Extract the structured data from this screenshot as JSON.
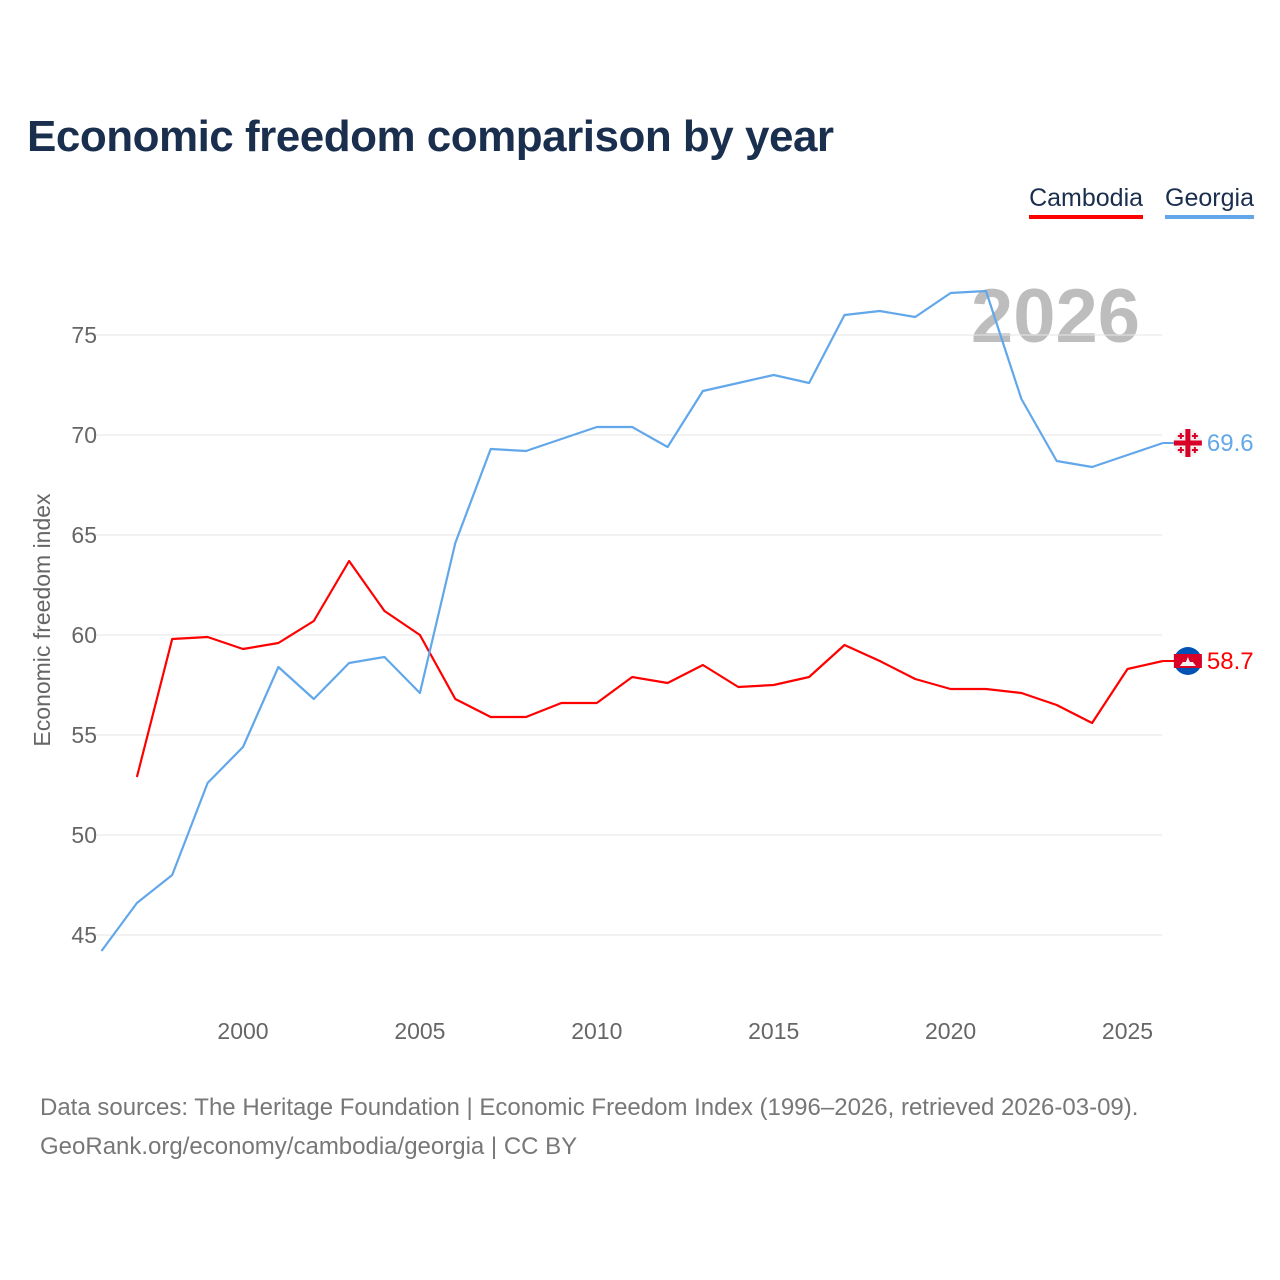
{
  "chart_data": {
    "type": "line",
    "title": "Economic freedom comparison by year",
    "ylabel": "Economic freedom index",
    "xlabel": "",
    "ylim": [
      42,
      78
    ],
    "xlim": [
      1996,
      2026
    ],
    "yticks": [
      45,
      50,
      55,
      60,
      65,
      70,
      75
    ],
    "xticks": [
      2000,
      2005,
      2010,
      2015,
      2020,
      2025
    ],
    "grid": true,
    "legend_position": "top-right",
    "year_watermark": "2026",
    "series": [
      {
        "name": "Cambodia",
        "color": "#ff0000",
        "end_label": "58.7",
        "flag": "cambodia-flag",
        "x": [
          1997,
          1998,
          1999,
          2000,
          2001,
          2002,
          2003,
          2004,
          2005,
          2006,
          2007,
          2008,
          2009,
          2010,
          2011,
          2012,
          2013,
          2014,
          2015,
          2016,
          2017,
          2018,
          2019,
          2020,
          2021,
          2022,
          2023,
          2024,
          2025,
          2026
        ],
        "values": [
          52.9,
          59.8,
          59.9,
          59.3,
          59.6,
          60.7,
          63.7,
          61.2,
          60.0,
          56.8,
          55.9,
          55.9,
          56.6,
          56.6,
          57.9,
          57.6,
          58.5,
          57.4,
          57.5,
          57.9,
          59.5,
          58.7,
          57.8,
          57.3,
          57.3,
          57.1,
          56.5,
          55.6,
          58.3,
          58.7
        ]
      },
      {
        "name": "Georgia",
        "color": "#62a7ea",
        "end_label": "69.6",
        "flag": "georgia-flag",
        "x": [
          1996,
          1997,
          1998,
          1999,
          2000,
          2001,
          2002,
          2003,
          2004,
          2005,
          2006,
          2007,
          2008,
          2009,
          2010,
          2011,
          2012,
          2013,
          2014,
          2015,
          2016,
          2017,
          2018,
          2019,
          2020,
          2021,
          2022,
          2023,
          2024,
          2025,
          2026
        ],
        "values": [
          44.2,
          46.6,
          48.0,
          52.6,
          54.4,
          58.4,
          56.8,
          58.6,
          58.9,
          57.1,
          64.6,
          69.3,
          69.2,
          69.8,
          70.4,
          70.4,
          69.4,
          72.2,
          72.6,
          73.0,
          72.6,
          76.0,
          76.2,
          75.9,
          77.1,
          77.2,
          71.8,
          68.7,
          68.4,
          69.0,
          69.6
        ]
      }
    ]
  },
  "footer": {
    "line1": "Data sources: The Heritage Foundation | Economic Freedom Index (1996–2026, retrieved 2026-03-09).",
    "line2": "GeoRank.org/economy/cambodia/georgia | CC BY"
  }
}
